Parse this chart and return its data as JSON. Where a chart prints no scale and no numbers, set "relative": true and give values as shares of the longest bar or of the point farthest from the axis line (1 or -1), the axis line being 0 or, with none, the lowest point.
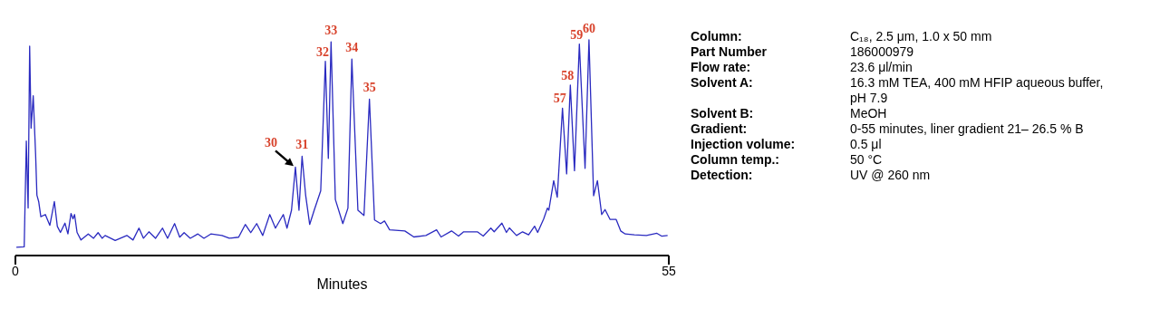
{
  "chart_data": {
    "type": "line",
    "relative": true,
    "xlabel": "Minutes",
    "xlim": [
      0,
      55
    ],
    "xticks": [
      0,
      55
    ],
    "grid": false,
    "legend": false,
    "marker": "none",
    "line_style": "solid",
    "x": [
      0.08,
      0.74,
      0.92,
      1.07,
      1.2,
      1.32,
      1.5,
      1.7,
      1.81,
      1.96,
      2.14,
      2.52,
      2.9,
      3.28,
      3.53,
      3.79,
      4.17,
      4.42,
      4.68,
      4.85,
      4.98,
      5.19,
      5.52,
      6.13,
      6.58,
      6.96,
      7.3,
      7.55,
      8.4,
      9.38,
      9.9,
      10.4,
      10.78,
      11.24,
      11.8,
      12.38,
      12.81,
      13.4,
      13.83,
      14.2,
      14.72,
      15.36,
      15.87,
      16.45,
      17.39,
      18.0,
      18.79,
      19.35,
      19.81,
      20.31,
      20.82,
      21.41,
      21.89,
      22.55,
      22.86,
      23.24,
      23.57,
      23.87,
      24.13,
      24.43,
      24.77,
      25.15,
      25.7,
      26.09,
      26.34,
      26.57,
      26.93,
      27.56,
      27.99,
      28.32,
      28.83,
      29.34,
      29.8,
      30.23,
      30.74,
      31.07,
      31.5,
      32.78,
      33.54,
      34.55,
      35.45,
      35.83,
      36.71,
      37.3,
      37.73,
      38.88,
      39.38,
      40.02,
      40.3,
      40.95,
      41.33,
      41.58,
      42.18,
      42.69,
      43.2,
      43.7,
      43.96,
      44.47,
      44.78,
      44.9,
      45.31,
      45.61,
      46.05,
      46.4,
      46.71,
      47.06,
      47.47,
      47.95,
      48.28,
      48.67,
      48.99,
      49.35,
      49.63,
      50.06,
      50.57,
      50.95,
      51.33,
      52.1,
      53.11,
      54.0,
      54.39,
      54.9
    ],
    "series": [
      {
        "color": "#2a2ac0",
        "values": [
          0.038,
          0.04,
          0.53,
          0.22,
          0.97,
          0.59,
          0.74,
          0.47,
          0.28,
          0.25,
          0.18,
          0.19,
          0.14,
          0.25,
          0.135,
          0.107,
          0.15,
          0.1,
          0.195,
          0.17,
          0.19,
          0.107,
          0.072,
          0.1,
          0.08,
          0.106,
          0.08,
          0.093,
          0.07,
          0.093,
          0.072,
          0.127,
          0.08,
          0.11,
          0.08,
          0.127,
          0.08,
          0.148,
          0.085,
          0.106,
          0.08,
          0.1,
          0.08,
          0.1,
          0.093,
          0.08,
          0.085,
          0.144,
          0.106,
          0.148,
          0.093,
          0.19,
          0.127,
          0.19,
          0.127,
          0.21,
          0.41,
          0.21,
          0.46,
          0.28,
          0.144,
          0.21,
          0.3,
          0.9,
          0.45,
          0.99,
          0.26,
          0.148,
          0.22,
          0.91,
          0.21,
          0.186,
          0.725,
          0.165,
          0.148,
          0.16,
          0.119,
          0.114,
          0.086,
          0.093,
          0.119,
          0.086,
          0.114,
          0.09,
          0.11,
          0.11,
          0.09,
          0.127,
          0.11,
          0.15,
          0.107,
          0.128,
          0.093,
          0.11,
          0.096,
          0.136,
          0.107,
          0.17,
          0.22,
          0.21,
          0.347,
          0.27,
          0.683,
          0.378,
          0.79,
          0.393,
          0.98,
          0.404,
          1.0,
          0.277,
          0.347,
          0.19,
          0.213,
          0.167,
          0.167,
          0.114,
          0.1,
          0.096,
          0.093,
          0.103,
          0.09,
          0.093
        ]
      }
    ],
    "annotations": [
      {
        "text": "30",
        "x": 23.57,
        "y": 0.41
      },
      {
        "text": "31",
        "x": 24.13,
        "y": 0.46
      },
      {
        "text": "32",
        "x": 26.09,
        "y": 0.9
      },
      {
        "text": "33",
        "x": 26.57,
        "y": 0.99
      },
      {
        "text": "34",
        "x": 28.32,
        "y": 0.91
      },
      {
        "text": "35",
        "x": 29.8,
        "y": 0.725
      },
      {
        "text": "57",
        "x": 46.05,
        "y": 0.683
      },
      {
        "text": "58",
        "x": 46.71,
        "y": 0.79
      },
      {
        "text": "59",
        "x": 47.47,
        "y": 0.98
      },
      {
        "text": "60",
        "x": 48.28,
        "y": 1.0
      },
      "Column:",
      "C₁₈, 2.5 μm, 1.0 x 50 mm",
      "Part Number",
      "186000979",
      "Flow rate:",
      "23.6 μl/min",
      "Solvent A:",
      "16.3 mM TEA, 400 mM HFIP aqueous buffer, pH 7.9",
      "Solvent B:",
      "MeOH",
      "Gradient:",
      "0-55 minutes, liner gradient  21– 26.5 % B",
      "Injection volume:",
      "0.5 μl",
      "Column temp.:",
      "50 °C",
      "Detection:",
      "UV @ 260 nm"
    ]
  }
}
